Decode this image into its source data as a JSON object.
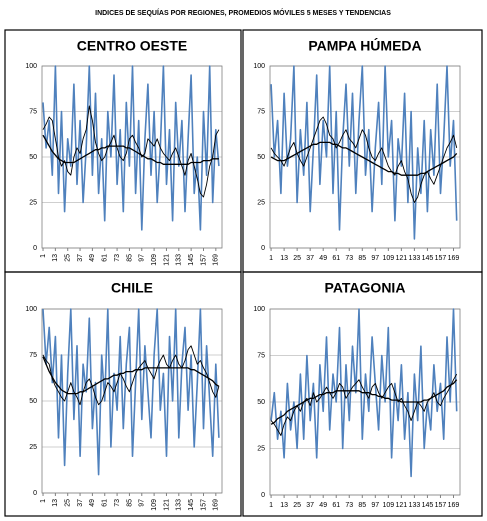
{
  "title": "INDICES DE SEQUÍAS POR REGIONES, PROMEDIOS MÓVILES 5 MESES Y TENDENCIAS",
  "chart_data": [
    {
      "type": "line",
      "title": "CENTRO OESTE",
      "x": [
        1,
        4,
        7,
        10,
        13,
        16,
        19,
        22,
        25,
        28,
        31,
        34,
        37,
        40,
        43,
        46,
        49,
        52,
        55,
        58,
        61,
        64,
        67,
        70,
        73,
        76,
        79,
        82,
        85,
        88,
        91,
        94,
        97,
        100,
        103,
        106,
        109,
        112,
        115,
        118,
        121,
        124,
        127,
        130,
        133,
        136,
        139,
        142,
        145,
        148,
        151,
        154,
        157,
        160,
        163,
        166,
        169,
        172
      ],
      "xlim": [
        0,
        175
      ],
      "xticks": [
        1,
        13,
        25,
        37,
        49,
        61,
        73,
        85,
        97,
        109,
        121,
        133,
        145,
        157,
        169
      ],
      "ylim": [
        0,
        100
      ],
      "yticks": [
        0,
        25,
        50,
        75,
        100
      ],
      "grid": true,
      "series": [
        {
          "color": "#4f81bd",
          "values": [
            80,
            55,
            70,
            40,
            100,
            30,
            75,
            20,
            60,
            45,
            90,
            35,
            70,
            25,
            55,
            100,
            40,
            85,
            30,
            60,
            15,
            75,
            50,
            95,
            35,
            65,
            20,
            80,
            45,
            100,
            30,
            70,
            10,
            60,
            90,
            40,
            75,
            25,
            55,
            100,
            35,
            65,
            15,
            80,
            45,
            70,
            20,
            60,
            95,
            30,
            50,
            10,
            75,
            40,
            100,
            25,
            65,
            45
          ]
        },
        {
          "color": "#000000",
          "values": [
            65,
            68,
            72,
            70,
            60,
            50,
            45,
            48,
            42,
            40,
            50,
            55,
            52,
            60,
            65,
            78,
            70,
            58,
            52,
            48,
            50,
            55,
            58,
            62,
            55,
            50,
            48,
            52,
            60,
            62,
            58,
            55,
            50,
            52,
            60,
            58,
            56,
            60,
            55,
            52,
            50,
            48,
            52,
            55,
            50,
            45,
            40,
            48,
            52,
            45,
            38,
            30,
            28,
            35,
            45,
            50,
            62,
            65
          ]
        },
        {
          "color": "#000000",
          "values": [
            62,
            59,
            56,
            53,
            51,
            49,
            48,
            47,
            47,
            47,
            47,
            48,
            49,
            50,
            51,
            52,
            53,
            54,
            54,
            55,
            55,
            56,
            56,
            56,
            56,
            56,
            56,
            55,
            55,
            54,
            53,
            52,
            51,
            50,
            49,
            49,
            48,
            47,
            47,
            46,
            46,
            46,
            46,
            46,
            46,
            46,
            46,
            46,
            47,
            47,
            47,
            47,
            48,
            48,
            48,
            49,
            49,
            49
          ]
        }
      ]
    },
    {
      "type": "line",
      "title": "PAMPA HÚMEDA",
      "x": [
        1,
        4,
        7,
        10,
        13,
        16,
        19,
        22,
        25,
        28,
        31,
        34,
        37,
        40,
        43,
        46,
        49,
        52,
        55,
        58,
        61,
        64,
        67,
        70,
        73,
        76,
        79,
        82,
        85,
        88,
        91,
        94,
        97,
        100,
        103,
        106,
        109,
        112,
        115,
        118,
        121,
        124,
        127,
        130,
        133,
        136,
        139,
        142,
        145,
        148,
        151,
        154,
        157,
        160,
        163,
        166,
        169,
        172
      ],
      "xlim": [
        0,
        175
      ],
      "xticks": [
        1,
        13,
        25,
        37,
        49,
        61,
        73,
        85,
        97,
        109,
        121,
        133,
        145,
        157,
        169
      ],
      "ylim": [
        0,
        100
      ],
      "yticks": [
        0,
        25,
        50,
        75,
        100
      ],
      "grid": true,
      "series": [
        {
          "color": "#4f81bd",
          "values": [
            90,
            50,
            70,
            30,
            85,
            45,
            60,
            100,
            25,
            65,
            40,
            80,
            20,
            55,
            95,
            35,
            70,
            50,
            100,
            30,
            75,
            10,
            60,
            90,
            45,
            85,
            30,
            70,
            100,
            40,
            65,
            20,
            55,
            80,
            35,
            100,
            50,
            70,
            15,
            60,
            45,
            85,
            25,
            75,
            5,
            55,
            30,
            70,
            20,
            65,
            40,
            90,
            30,
            60,
            100,
            45,
            70,
            15
          ]
        },
        {
          "color": "#000000",
          "values": [
            55,
            52,
            50,
            48,
            45,
            50,
            55,
            58,
            52,
            48,
            45,
            50,
            55,
            60,
            65,
            70,
            72,
            68,
            62,
            60,
            55,
            58,
            62,
            65,
            60,
            58,
            55,
            60,
            65,
            62,
            55,
            50,
            48,
            52,
            55,
            50,
            45,
            42,
            40,
            45,
            48,
            42,
            38,
            30,
            25,
            28,
            35,
            40,
            42,
            38,
            35,
            40,
            45,
            50,
            55,
            58,
            62,
            55
          ]
        },
        {
          "color": "#000000",
          "values": [
            50,
            49,
            48,
            48,
            48,
            49,
            50,
            51,
            52,
            53,
            54,
            55,
            56,
            57,
            57,
            58,
            58,
            58,
            58,
            57,
            57,
            56,
            55,
            55,
            54,
            53,
            52,
            51,
            50,
            49,
            48,
            47,
            46,
            45,
            44,
            43,
            42,
            42,
            41,
            41,
            40,
            40,
            40,
            40,
            40,
            40,
            41,
            41,
            42,
            43,
            44,
            45,
            46,
            47,
            48,
            49,
            50,
            52
          ]
        }
      ]
    },
    {
      "type": "line",
      "title": "CHILE",
      "x": [
        1,
        4,
        7,
        10,
        13,
        16,
        19,
        22,
        25,
        28,
        31,
        34,
        37,
        40,
        43,
        46,
        49,
        52,
        55,
        58,
        61,
        64,
        67,
        70,
        73,
        76,
        79,
        82,
        85,
        88,
        91,
        94,
        97,
        100,
        103,
        106,
        109,
        112,
        115,
        118,
        121,
        124,
        127,
        130,
        133,
        136,
        139,
        142,
        145,
        148,
        151,
        154,
        157,
        160,
        163,
        166,
        169,
        172
      ],
      "xlim": [
        0,
        175
      ],
      "xticks": [
        1,
        13,
        25,
        37,
        49,
        61,
        73,
        85,
        97,
        109,
        121,
        133,
        145,
        157,
        169
      ],
      "ylim": [
        0,
        100
      ],
      "yticks": [
        0,
        25,
        50,
        75,
        100
      ],
      "grid": true,
      "series": [
        {
          "color": "#4f81bd",
          "values": [
            100,
            70,
            90,
            60,
            85,
            30,
            75,
            15,
            65,
            100,
            40,
            80,
            20,
            70,
            55,
            95,
            35,
            60,
            10,
            75,
            50,
            100,
            25,
            65,
            45,
            85,
            35,
            70,
            90,
            20,
            60,
            100,
            40,
            80,
            55,
            30,
            75,
            100,
            45,
            65,
            20,
            85,
            50,
            100,
            30,
            70,
            90,
            45,
            75,
            25,
            60,
            100,
            35,
            80,
            50,
            20,
            70,
            30
          ]
        },
        {
          "color": "#000000",
          "values": [
            75,
            72,
            70,
            62,
            58,
            55,
            52,
            50,
            55,
            60,
            55,
            52,
            48,
            55,
            60,
            62,
            58,
            52,
            48,
            50,
            55,
            60,
            58,
            55,
            60,
            65,
            62,
            58,
            55,
            60,
            65,
            68,
            70,
            72,
            68,
            65,
            62,
            68,
            72,
            75,
            70,
            68,
            72,
            75,
            70,
            68,
            72,
            78,
            80,
            75,
            70,
            72,
            68,
            65,
            60,
            55,
            52,
            58
          ]
        },
        {
          "color": "#000000",
          "values": [
            74,
            70,
            66,
            63,
            60,
            58,
            56,
            55,
            54,
            54,
            54,
            54,
            55,
            55,
            56,
            57,
            58,
            59,
            60,
            61,
            62,
            62,
            63,
            64,
            64,
            65,
            65,
            66,
            66,
            66,
            67,
            67,
            67,
            68,
            68,
            68,
            68,
            68,
            68,
            68,
            68,
            68,
            68,
            68,
            68,
            68,
            68,
            68,
            67,
            67,
            66,
            65,
            64,
            63,
            62,
            61,
            59,
            58
          ]
        }
      ]
    },
    {
      "type": "line",
      "title": "PATAGONIA",
      "x": [
        1,
        4,
        7,
        10,
        13,
        16,
        19,
        22,
        25,
        28,
        31,
        34,
        37,
        40,
        43,
        46,
        49,
        52,
        55,
        58,
        61,
        64,
        67,
        70,
        73,
        76,
        79,
        82,
        85,
        88,
        91,
        94,
        97,
        100,
        103,
        106,
        109,
        112,
        115,
        118,
        121,
        124,
        127,
        130,
        133,
        136,
        139,
        142,
        145,
        148,
        151,
        154,
        157,
        160,
        163,
        166,
        169,
        172
      ],
      "xlim": [
        0,
        175
      ],
      "xticks": [
        1,
        13,
        25,
        37,
        49,
        61,
        73,
        85,
        97,
        109,
        121,
        133,
        145,
        157,
        169
      ],
      "ylim": [
        0,
        100
      ],
      "yticks": [
        0,
        25,
        50,
        75,
        100
      ],
      "grid": true,
      "series": [
        {
          "color": "#4f81bd",
          "values": [
            40,
            55,
            30,
            45,
            20,
            60,
            35,
            50,
            25,
            65,
            30,
            75,
            40,
            60,
            20,
            70,
            45,
            85,
            35,
            65,
            50,
            90,
            25,
            70,
            40,
            80,
            55,
            100,
            30,
            65,
            45,
            85,
            60,
            35,
            75,
            50,
            90,
            20,
            60,
            40,
            70,
            30,
            55,
            10,
            65,
            40,
            80,
            25,
            50,
            35,
            70,
            45,
            60,
            30,
            85,
            50,
            100,
            45
          ]
        },
        {
          "color": "#000000",
          "values": [
            40,
            38,
            35,
            32,
            38,
            42,
            40,
            45,
            48,
            45,
            50,
            52,
            48,
            55,
            50,
            52,
            55,
            58,
            55,
            52,
            55,
            60,
            58,
            52,
            55,
            58,
            60,
            62,
            58,
            55,
            52,
            58,
            60,
            55,
            52,
            55,
            58,
            60,
            55,
            50,
            52,
            48,
            45,
            40,
            45,
            50,
            48,
            45,
            50,
            52,
            55,
            50,
            48,
            52,
            55,
            58,
            62,
            65
          ]
        },
        {
          "color": "#000000",
          "values": [
            38,
            39,
            41,
            42,
            43,
            45,
            46,
            47,
            48,
            49,
            50,
            51,
            52,
            52,
            53,
            54,
            54,
            55,
            55,
            55,
            56,
            56,
            56,
            56,
            56,
            56,
            56,
            56,
            55,
            55,
            55,
            54,
            54,
            53,
            53,
            52,
            52,
            51,
            51,
            51,
            50,
            50,
            50,
            50,
            50,
            50,
            50,
            51,
            51,
            52,
            53,
            54,
            55,
            56,
            58,
            59,
            60,
            62
          ]
        }
      ]
    }
  ]
}
